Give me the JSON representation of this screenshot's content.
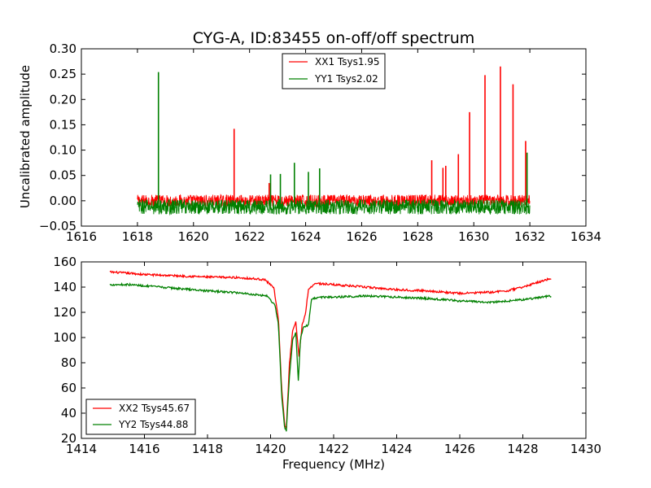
{
  "chart_data": [
    {
      "type": "line",
      "title": "CYG-A, ID:83455 on-off/off spectrum",
      "xlabel": "",
      "ylabel": "Uncalibrated amplitude",
      "xlim": [
        1616,
        1634
      ],
      "ylim": [
        -0.05,
        0.3
      ],
      "xticks": [
        "1616",
        "1618",
        "1620",
        "1622",
        "1624",
        "1626",
        "1628",
        "1630",
        "1632",
        "1634"
      ],
      "yticks": [
        "−0.05",
        "0.00",
        "0.05",
        "0.10",
        "0.15",
        "0.20",
        "0.25",
        "0.30"
      ],
      "grid": false,
      "legend_position": "top-center",
      "x_range": [
        1618.0,
        1632.0
      ],
      "series": [
        {
          "name": "XX1 Tsys1.95",
          "color": "#ff0000",
          "baseline": 0.0,
          "noise_amplitude": 0.012,
          "spikes": [
            {
              "x": 1621.45,
              "y": 0.142
            },
            {
              "x": 1622.7,
              "y": 0.035
            },
            {
              "x": 1628.5,
              "y": 0.08
            },
            {
              "x": 1628.9,
              "y": 0.065
            },
            {
              "x": 1629.0,
              "y": 0.069
            },
            {
              "x": 1629.45,
              "y": 0.092
            },
            {
              "x": 1629.85,
              "y": 0.175
            },
            {
              "x": 1630.4,
              "y": 0.248
            },
            {
              "x": 1630.95,
              "y": 0.265
            },
            {
              "x": 1631.4,
              "y": 0.23
            },
            {
              "x": 1631.85,
              "y": 0.118
            }
          ]
        },
        {
          "name": "YY1 Tsys2.02",
          "color": "#008000",
          "baseline": -0.012,
          "noise_amplitude": 0.015,
          "spikes": [
            {
              "x": 1618.75,
              "y": 0.254
            },
            {
              "x": 1622.75,
              "y": 0.052
            },
            {
              "x": 1623.1,
              "y": 0.053
            },
            {
              "x": 1623.6,
              "y": 0.075
            },
            {
              "x": 1624.1,
              "y": 0.057
            },
            {
              "x": 1624.5,
              "y": 0.064
            },
            {
              "x": 1631.9,
              "y": 0.095
            }
          ]
        }
      ]
    },
    {
      "type": "line",
      "title": "",
      "xlabel": "Frequency (MHz)",
      "ylabel": "",
      "xlim": [
        1414,
        1430
      ],
      "ylim": [
        20,
        160
      ],
      "xticks": [
        "1414",
        "1416",
        "1418",
        "1420",
        "1422",
        "1424",
        "1426",
        "1428",
        "1430"
      ],
      "yticks": [
        "20",
        "40",
        "60",
        "80",
        "100",
        "120",
        "140",
        "160"
      ],
      "grid": false,
      "legend_position": "bottom-left",
      "x_range": [
        1414.9,
        1428.9
      ],
      "series": [
        {
          "name": "XX2 Tsys45.67",
          "color": "#ff0000",
          "noise_amplitude": 0.8,
          "points": [
            [
              1414.9,
              152
            ],
            [
              1415.5,
              151
            ],
            [
              1416.0,
              150
            ],
            [
              1417.0,
              149
            ],
            [
              1418.0,
              148
            ],
            [
              1419.0,
              147.5
            ],
            [
              1419.8,
              146
            ],
            [
              1420.1,
              140
            ],
            [
              1420.25,
              115
            ],
            [
              1420.35,
              60
            ],
            [
              1420.45,
              30
            ],
            [
              1420.5,
              28
            ],
            [
              1420.6,
              80
            ],
            [
              1420.7,
              105
            ],
            [
              1420.8,
              112
            ],
            [
              1420.9,
              85
            ],
            [
              1421.0,
              110
            ],
            [
              1421.1,
              118
            ],
            [
              1421.2,
              138
            ],
            [
              1421.4,
              143
            ],
            [
              1422.0,
              142
            ],
            [
              1423.0,
              140
            ],
            [
              1424.0,
              138
            ],
            [
              1425.0,
              137
            ],
            [
              1426.0,
              135
            ],
            [
              1427.0,
              136
            ],
            [
              1427.5,
              137
            ],
            [
              1428.0,
              140
            ],
            [
              1428.5,
              144
            ],
            [
              1428.9,
              147
            ]
          ]
        },
        {
          "name": "YY2 Tsys44.88",
          "color": "#008000",
          "noise_amplitude": 0.8,
          "points": [
            [
              1414.9,
              142
            ],
            [
              1415.5,
              142
            ],
            [
              1416.0,
              141
            ],
            [
              1417.0,
              139
            ],
            [
              1418.0,
              137
            ],
            [
              1419.0,
              135.5
            ],
            [
              1419.9,
              133
            ],
            [
              1420.15,
              125
            ],
            [
              1420.25,
              110
            ],
            [
              1420.35,
              55
            ],
            [
              1420.45,
              28
            ],
            [
              1420.5,
              26
            ],
            [
              1420.6,
              70
            ],
            [
              1420.7,
              98
            ],
            [
              1420.8,
              104
            ],
            [
              1420.88,
              65
            ],
            [
              1420.95,
              100
            ],
            [
              1421.05,
              108
            ],
            [
              1421.2,
              110
            ],
            [
              1421.3,
              130
            ],
            [
              1421.5,
              132
            ],
            [
              1422.0,
              132
            ],
            [
              1423.0,
              133
            ],
            [
              1424.0,
              132
            ],
            [
              1425.0,
              131
            ],
            [
              1426.0,
              129
            ],
            [
              1427.0,
              128
            ],
            [
              1427.5,
              129
            ],
            [
              1428.0,
              130
            ],
            [
              1428.9,
              133
            ]
          ]
        }
      ]
    }
  ]
}
